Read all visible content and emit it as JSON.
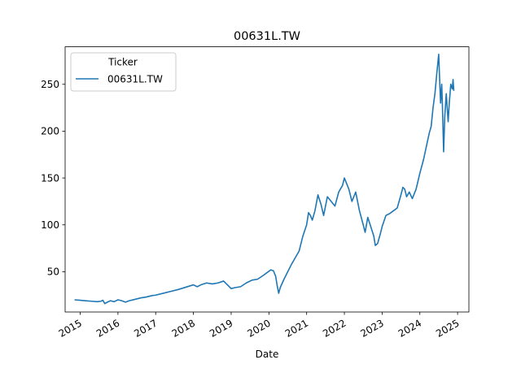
{
  "chart_data": {
    "type": "line",
    "title": "00631L.TW",
    "xlabel": "Date",
    "ylabel": "",
    "xlim": [
      2014.6,
      2025.3
    ],
    "ylim": [
      7,
      290
    ],
    "x_ticks": [
      2015,
      2016,
      2017,
      2018,
      2019,
      2020,
      2021,
      2022,
      2023,
      2024,
      2025
    ],
    "x_tick_labels": [
      "2015",
      "2016",
      "2017",
      "2018",
      "2019",
      "2020",
      "2021",
      "2022",
      "2023",
      "2024",
      "2025"
    ],
    "y_ticks": [
      50,
      100,
      150,
      200,
      250
    ],
    "y_tick_labels": [
      "50",
      "100",
      "150",
      "200",
      "250"
    ],
    "legend": {
      "title": "Ticker",
      "placement": "upper-left",
      "entries": [
        "00631L.TW"
      ]
    },
    "series": [
      {
        "name": "00631L.TW",
        "color": "#1f77b4",
        "x": [
          2014.85,
          2015.0,
          2015.15,
          2015.3,
          2015.45,
          2015.55,
          2015.6,
          2015.65,
          2015.72,
          2015.8,
          2015.9,
          2016.0,
          2016.1,
          2016.2,
          2016.3,
          2016.45,
          2016.6,
          2016.75,
          2016.9,
          2017.0,
          2017.2,
          2017.4,
          2017.6,
          2017.8,
          2018.0,
          2018.1,
          2018.2,
          2018.35,
          2018.5,
          2018.65,
          2018.8,
          2018.9,
          2019.0,
          2019.1,
          2019.25,
          2019.4,
          2019.55,
          2019.7,
          2019.85,
          2019.95,
          2020.05,
          2020.12,
          2020.18,
          2020.22,
          2020.26,
          2020.3,
          2020.4,
          2020.5,
          2020.6,
          2020.7,
          2020.8,
          2020.9,
          2021.0,
          2021.05,
          2021.1,
          2021.15,
          2021.22,
          2021.3,
          2021.38,
          2021.45,
          2021.55,
          2021.65,
          2021.75,
          2021.85,
          2021.95,
          2022.0,
          2022.05,
          2022.12,
          2022.2,
          2022.3,
          2022.4,
          2022.5,
          2022.55,
          2022.62,
          2022.7,
          2022.78,
          2022.82,
          2022.88,
          2022.95,
          2023.0,
          2023.1,
          2023.2,
          2023.3,
          2023.4,
          2023.5,
          2023.55,
          2023.6,
          2023.65,
          2023.72,
          2023.8,
          2023.9,
          2024.0,
          2024.1,
          2024.18,
          2024.25,
          2024.3,
          2024.35,
          2024.4,
          2024.45,
          2024.5,
          2024.52,
          2024.55,
          2024.58,
          2024.6,
          2024.63,
          2024.66,
          2024.7,
          2024.75,
          2024.78,
          2024.82,
          2024.86,
          2024.88,
          2024.9
        ],
        "values": [
          20,
          19.5,
          19,
          18.5,
          18,
          18.5,
          19.5,
          16,
          17.5,
          19,
          18,
          20,
          19,
          17.5,
          19,
          20.5,
          22,
          23,
          24.5,
          25,
          27,
          29,
          31,
          33.5,
          36,
          34,
          36,
          38,
          37,
          38,
          40,
          36,
          32,
          33,
          34,
          38,
          41,
          42,
          46,
          49,
          52,
          51,
          45,
          35,
          27,
          33,
          42,
          50,
          58,
          65,
          72,
          88,
          100,
          113,
          110,
          105,
          115,
          132,
          122,
          110,
          130,
          125,
          120,
          135,
          142,
          150,
          145,
          138,
          125,
          135,
          115,
          100,
          92,
          108,
          98,
          88,
          78,
          80,
          90,
          98,
          110,
          112,
          115,
          118,
          132,
          140,
          138,
          130,
          135,
          128,
          138,
          155,
          170,
          185,
          198,
          205,
          225,
          240,
          262,
          282,
          260,
          230,
          250,
          225,
          178,
          215,
          240,
          210,
          230,
          250,
          245,
          255,
          243
        ]
      }
    ]
  }
}
